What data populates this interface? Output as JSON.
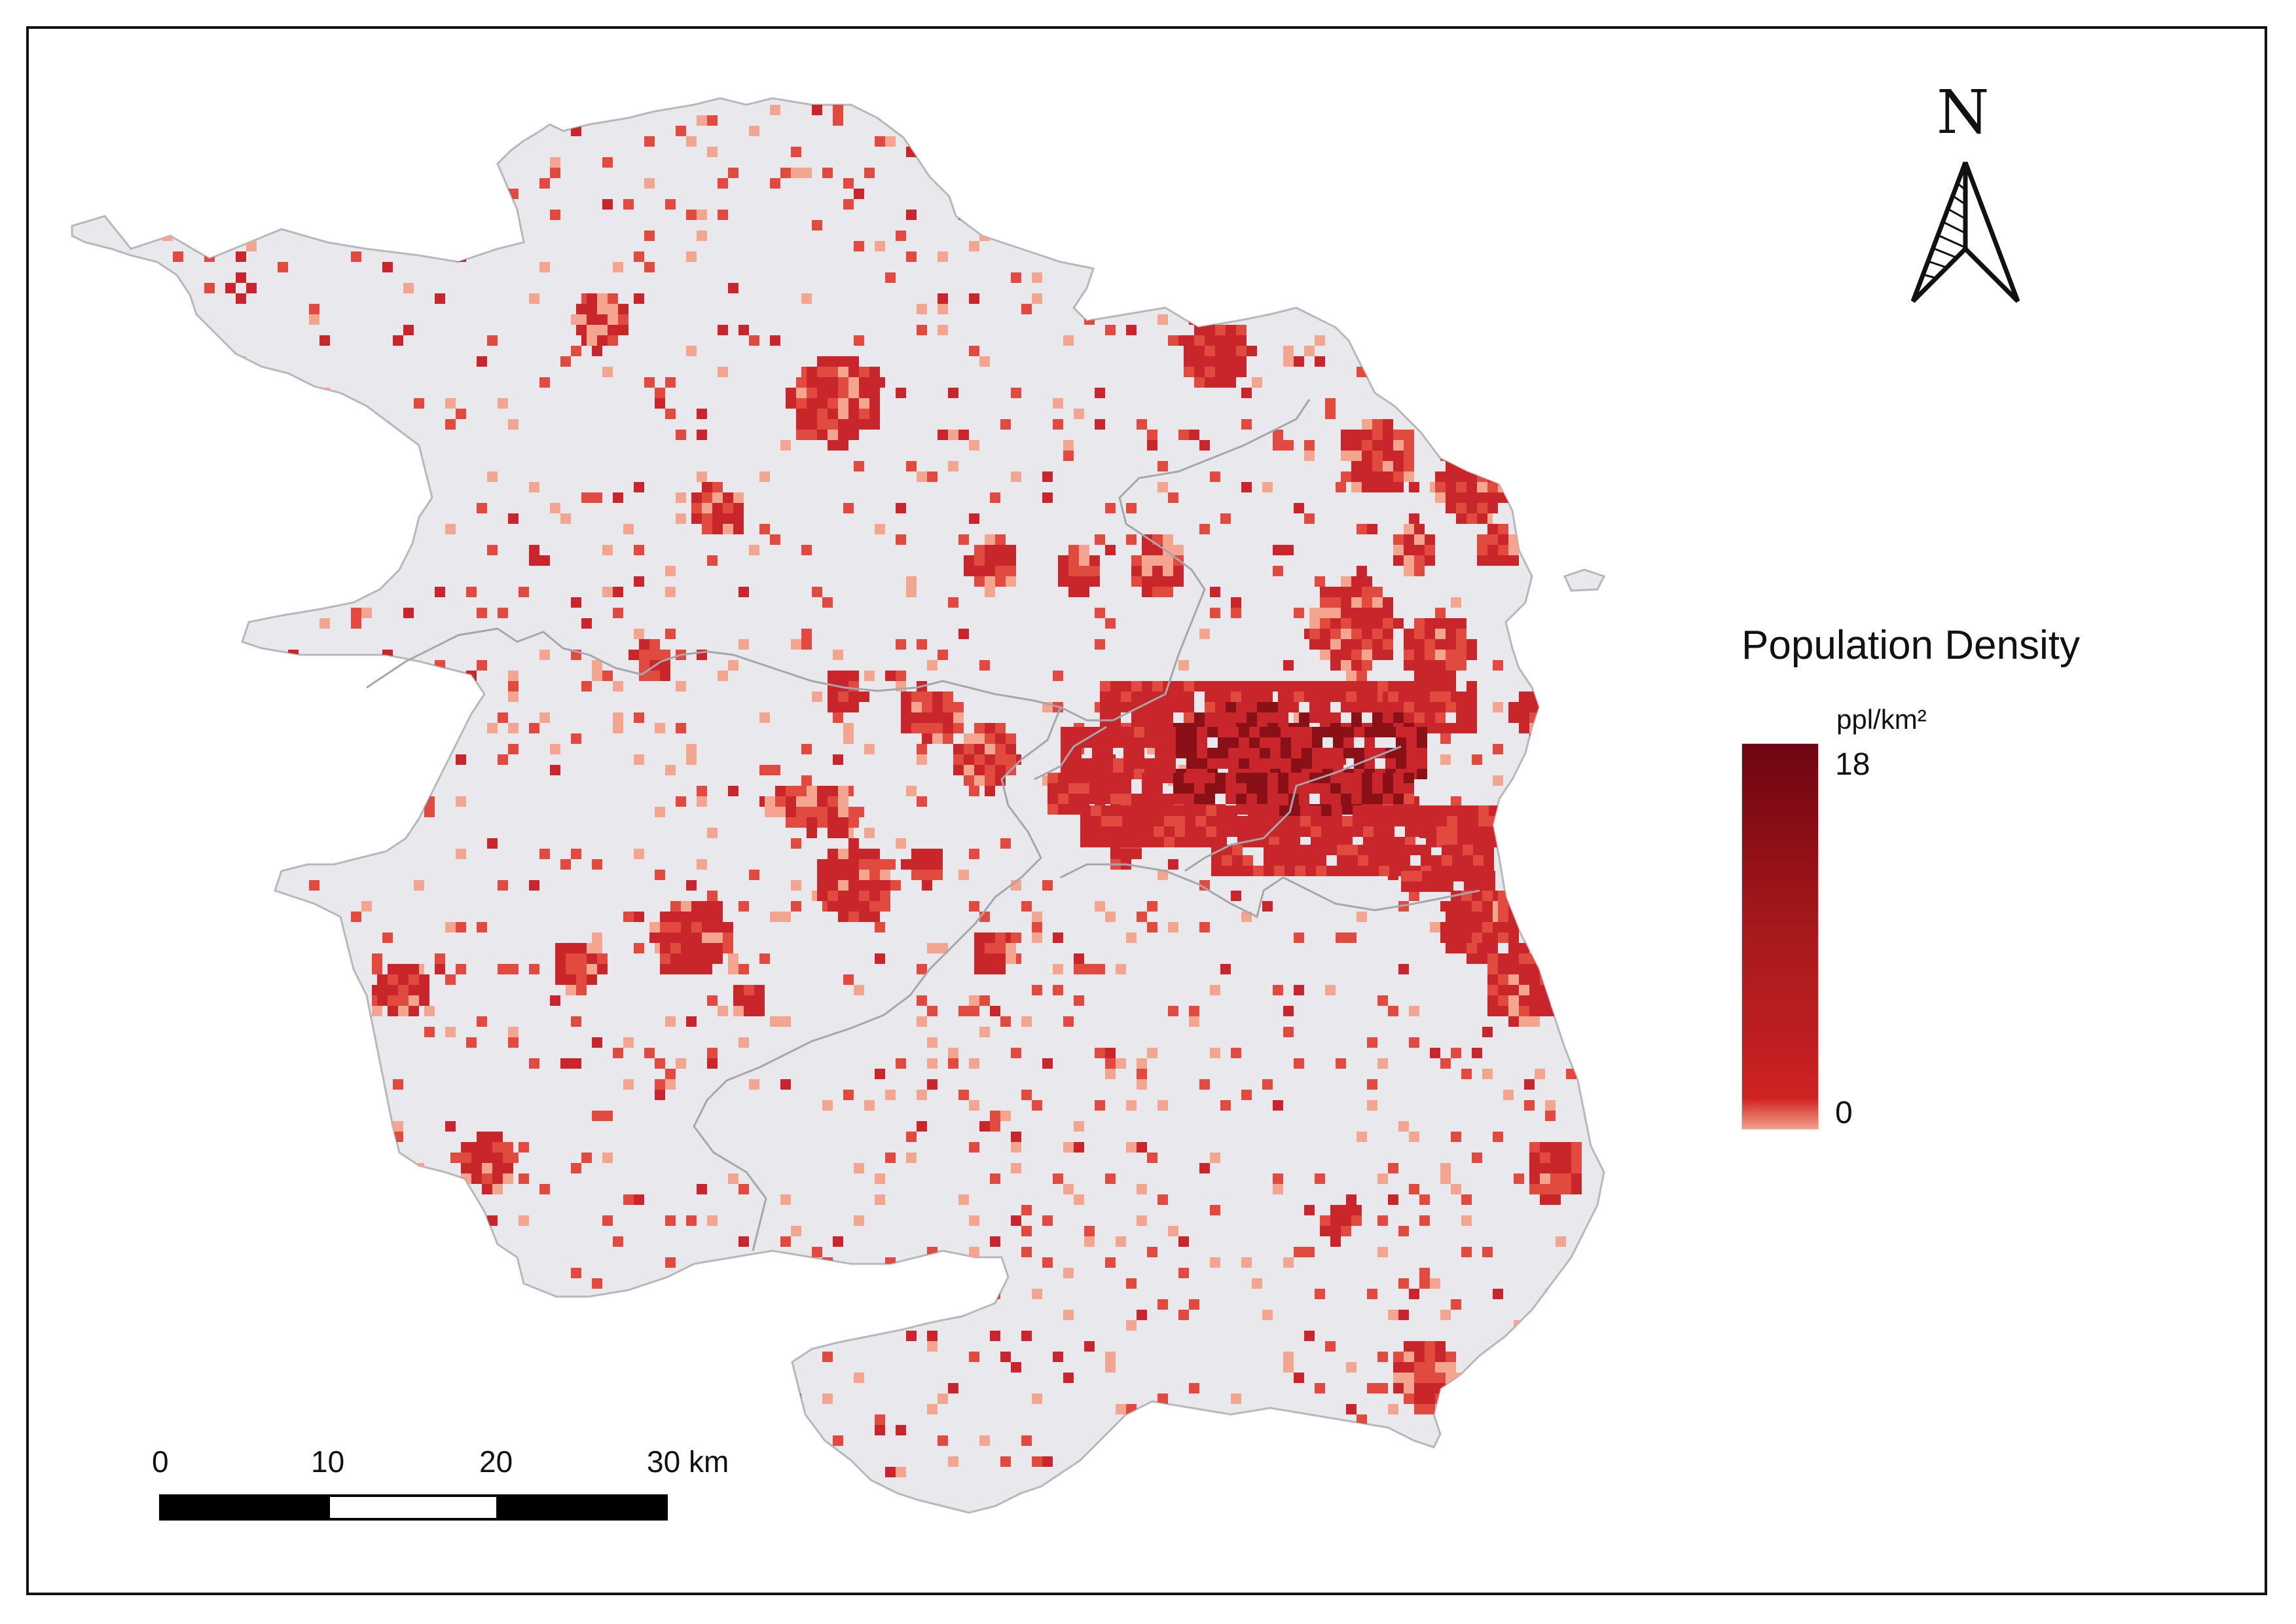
{
  "legend": {
    "title": "Population Density",
    "unit": "ppl/km²",
    "max_label": "18",
    "min_label": "0",
    "max_value": 18,
    "min_value": 0,
    "ramp_colors": [
      "#6e0512",
      "#8c0f16",
      "#a81a1c",
      "#c01f21",
      "#d12222",
      "#f2a089"
    ]
  },
  "north_arrow": {
    "letter": "N",
    "icon": "north-arrow-icon"
  },
  "scale_bar": {
    "labels": [
      "0",
      "10",
      "20",
      "30 km"
    ],
    "segments": [
      "black",
      "white",
      "black"
    ]
  },
  "colors": {
    "land": "#e9e8ec",
    "boundary": "#a7a6ab",
    "density_low": "#f4a58f",
    "density_mid": "#e04a3f",
    "density_high": "#c8262a",
    "density_peak": "#8a1018",
    "frame": "#111111"
  }
}
